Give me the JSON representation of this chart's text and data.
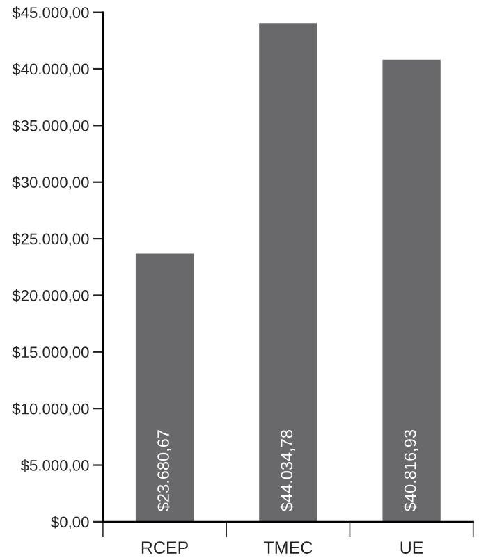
{
  "chart_data": {
    "type": "bar",
    "categories": [
      "RCEP",
      "TMEC",
      "UE"
    ],
    "values": [
      23680.67,
      44034.78,
      40816.93
    ],
    "value_labels": [
      "$23.680,67",
      "$44.034,78",
      "$40.816,93"
    ],
    "color": "#69696b",
    "ylim": [
      0,
      45000
    ],
    "yticks": [
      {
        "value": 0,
        "label": "$0,00"
      },
      {
        "value": 5000,
        "label": "$5.000,00"
      },
      {
        "value": 10000,
        "label": "$10.000,00"
      },
      {
        "value": 15000,
        "label": "$15.000,00"
      },
      {
        "value": 20000,
        "label": "$20.000,00"
      },
      {
        "value": 25000,
        "label": "$25.000,00"
      },
      {
        "value": 30000,
        "label": "$30.000,00"
      },
      {
        "value": 35000,
        "label": "$35.000,00"
      },
      {
        "value": 40000,
        "label": "$40.000,00"
      },
      {
        "value": 45000,
        "label": "$45.000,00"
      }
    ],
    "grid": false,
    "legend": false
  }
}
